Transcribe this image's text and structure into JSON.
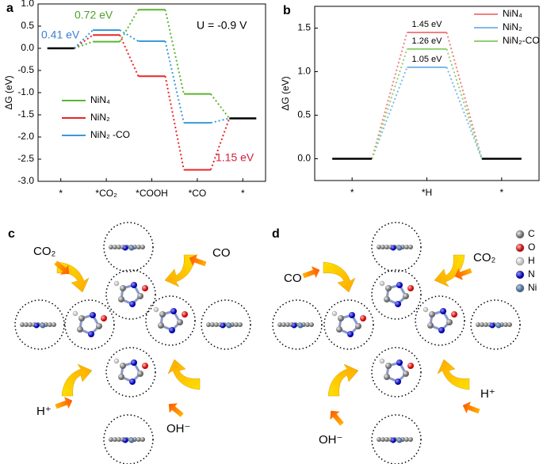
{
  "chart_data": [
    {
      "type": "energy-levels",
      "panel_label": "a",
      "y_label": "ΔG (eV)",
      "categories": [
        "*",
        "*CO₂",
        "*COOH",
        "*CO",
        "*"
      ],
      "ylim": [
        -3.0,
        1.0
      ],
      "yticks": [
        {
          "value": -3.0,
          "label": "-3.0"
        },
        {
          "value": -2.5,
          "label": "-2.5"
        },
        {
          "value": -2.0,
          "label": "-2.0"
        },
        {
          "value": -1.5,
          "label": "-1.5"
        },
        {
          "value": -1.0,
          "label": "-1.0"
        },
        {
          "value": -0.5,
          "label": "-0.5"
        },
        {
          "value": 0.0,
          "label": "0.0"
        },
        0.5,
        {
          "value": 1.0,
          "label": "1.0"
        }
      ],
      "baseline": {
        "color": "#000000",
        "values": [
          0,
          null,
          null,
          null,
          -1.58
        ]
      },
      "series": [
        {
          "name": "NiN₄",
          "color": "#5cb531",
          "values": [
            null,
            0.15,
            0.87,
            -1.03,
            null
          ]
        },
        {
          "name": "NiN₂",
          "color": "#e8262a",
          "values": [
            null,
            0.3,
            -0.63,
            -2.74,
            null
          ]
        },
        {
          "name": "NiN₂ -CO",
          "color": "#3a9ad9",
          "values": [
            null,
            0.41,
            0.16,
            -1.68,
            null
          ]
        }
      ],
      "legend": "lower left",
      "annotations": [
        {
          "text": "0.41 eV",
          "color": "#3a7fd0"
        },
        {
          "text": "0.72 eV",
          "color": "#4ea02c"
        },
        {
          "text": "1.15 eV",
          "color": "#d21f3c"
        },
        {
          "text": "U = -0.9 V",
          "color": "#000000"
        }
      ]
    },
    {
      "type": "energy-levels",
      "panel_label": "b",
      "y_label": "ΔG (eV)",
      "categories": [
        "*",
        "*H",
        "*"
      ],
      "ylim": [
        -0.25,
        1.75
      ],
      "yticks": [
        {
          "value": 0.0,
          "label": "0.0"
        },
        0.5,
        {
          "value": 1.0,
          "label": "1.0"
        },
        1.5
      ],
      "baseline": {
        "color": "#000000",
        "values": [
          0,
          null,
          0
        ]
      },
      "series": [
        {
          "name": "NiN₄",
          "color": "#f08080",
          "values": [
            null,
            1.45,
            null
          ],
          "value_labels": [
            null,
            "1.45 eV",
            null
          ]
        },
        {
          "name": "NiN₂",
          "color": "#7fb8e8",
          "values": [
            null,
            1.05,
            null
          ],
          "value_labels": [
            null,
            "1.05 eV",
            null
          ]
        },
        {
          "name": "NiN₂-CO",
          "color": "#90d070",
          "values": [
            null,
            1.26,
            null
          ],
          "value_labels": [
            null,
            "1.26 eV",
            null
          ]
        }
      ],
      "legend": "upper right"
    }
  ],
  "diagrams": [
    {
      "label": "c",
      "species": [
        "CO₂",
        "CO",
        "H⁺",
        "OH⁻"
      ]
    },
    {
      "label": "d",
      "species": [
        "CO",
        "CO₂",
        "H⁺",
        "OH⁻"
      ]
    }
  ],
  "element_legend": [
    "C",
    "O",
    "H",
    "N",
    "Ni"
  ]
}
